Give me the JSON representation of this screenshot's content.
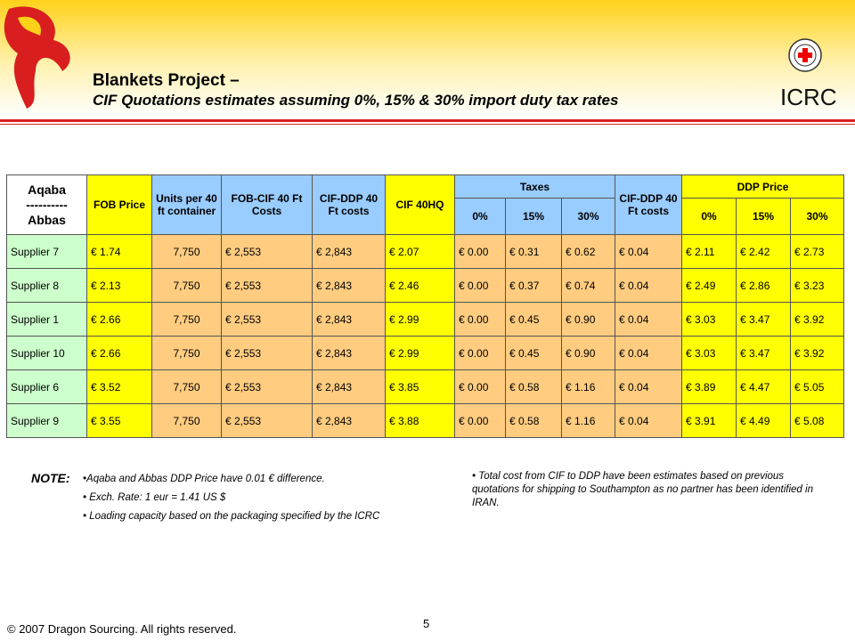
{
  "header": {
    "title": "Blankets Project –",
    "subtitle": "CIF Quotations estimates assuming 0%, 15% & 30% import duty tax rates",
    "logo": "ICRC"
  },
  "table": {
    "headers": {
      "route": [
        "Aqaba",
        "----------",
        "Abbas"
      ],
      "fob": "FOB Price",
      "units": "Units per 40 ft container",
      "fob_cif": "FOB-CIF 40 Ft Costs",
      "cif_ddp": "CIF-DDP 40 Ft costs",
      "cif": "CIF 40HQ",
      "taxes": "Taxes",
      "tax_rates": [
        "0%",
        "15%",
        "30%"
      ],
      "cif_ddp2": "CIF-DDP 40 Ft costs",
      "ddp": "DDP Price",
      "ddp_rates": [
        "0%",
        "15%",
        "30%"
      ]
    },
    "rows": [
      [
        "Supplier 7",
        "€ 1.74",
        "7,750",
        "€ 2,553",
        "€ 2,843",
        "€ 2.07",
        "€ 0.00",
        "€ 0.31",
        "€ 0.62",
        "€ 0.04",
        "€ 2.11",
        "€ 2.42",
        "€ 2.73"
      ],
      [
        "Supplier 8",
        "€ 2.13",
        "7,750",
        "€ 2,553",
        "€ 2,843",
        "€ 2.46",
        "€ 0.00",
        "€ 0.37",
        "€ 0.74",
        "€ 0.04",
        "€ 2.49",
        "€ 2.86",
        "€ 3.23"
      ],
      [
        "Supplier 1",
        "€ 2.66",
        "7,750",
        "€ 2,553",
        "€ 2,843",
        "€ 2.99",
        "€ 0.00",
        "€ 0.45",
        "€ 0.90",
        "€ 0.04",
        "€ 3.03",
        "€ 3.47",
        "€ 3.92"
      ],
      [
        "Supplier 10",
        "€ 2.66",
        "7,750",
        "€ 2,553",
        "€ 2,843",
        "€ 2.99",
        "€ 0.00",
        "€ 0.45",
        "€ 0.90",
        "€ 0.04",
        "€ 3.03",
        "€ 3.47",
        "€ 3.92"
      ],
      [
        "Supplier 6",
        "€ 3.52",
        "7,750",
        "€ 2,553",
        "€ 2,843",
        "€ 3.85",
        "€ 0.00",
        "€ 0.58",
        "€ 1.16",
        "€ 0.04",
        "€ 3.89",
        "€ 4.47",
        "€ 5.05"
      ],
      [
        "Supplier 9",
        "€ 3.55",
        "7,750",
        "€ 2,553",
        "€ 2,843",
        "€ 3.88",
        "€ 0.00",
        "€ 0.58",
        "€ 1.16",
        "€ 0.04",
        "€ 3.91",
        "€ 4.49",
        "€ 5.08"
      ]
    ]
  },
  "notes": {
    "label": "NOTE:",
    "left": [
      "•Aqaba and Abbas DDP Price have 0.01 € difference.",
      "• Exch. Rate: 1 eur = 1.41 US $",
      "• Loading capacity based on the packaging specified by the ICRC"
    ],
    "right": "• Total cost from CIF to DDP have been estimates based on previous quotations for shipping to Southampton as no partner has been identified in IRAN."
  },
  "footer": {
    "copyright": "© 2007 Dragon Sourcing. All rights reserved.",
    "page": "5"
  }
}
